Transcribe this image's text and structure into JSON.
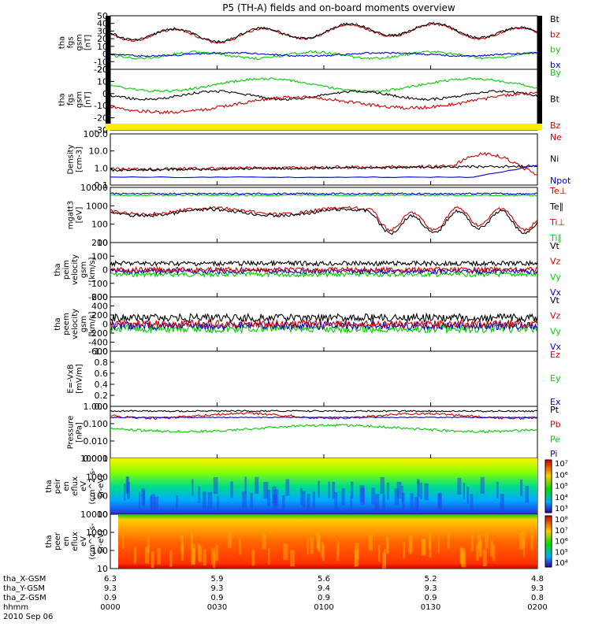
{
  "title": "P5 (TH-A) fields and on-board moments overview",
  "panels": [
    {
      "id": "fgs-gsm",
      "ylabel": [
        "tha",
        "fgs",
        "gsm",
        "[nT]"
      ],
      "ticks": [
        "50",
        "40",
        "30",
        "20",
        "10",
        "0",
        "-10",
        "-20"
      ],
      "ylim": [
        -20,
        50
      ],
      "legend": [
        {
          "text": "Bt",
          "color": "#000000"
        },
        {
          "text": "bz",
          "color": "#d00000"
        },
        {
          "text": "by",
          "color": "#00cc00"
        },
        {
          "text": "bx",
          "color": "#0000cc"
        }
      ]
    },
    {
      "id": "fgs-gsm-2",
      "ylabel": [
        "tha",
        "fgs",
        "gsm",
        "[nT]"
      ],
      "ticks": [
        "20",
        "10",
        "0",
        "-10",
        "-20",
        "-30"
      ],
      "ylim": [
        -35,
        20
      ],
      "legend": [
        {
          "text": "By",
          "color": "#00cc00"
        },
        {
          "text": "Bt",
          "color": "#000000"
        },
        {
          "text": "Bz",
          "color": "#d00000"
        }
      ]
    },
    {
      "id": "density",
      "ylabel": [
        "Density",
        "[cm-3]"
      ],
      "ticks": [
        "100.0",
        "10.0",
        "1.0",
        "0.1"
      ],
      "scale": "log",
      "ylim": [
        0.1,
        100
      ],
      "legend": [
        {
          "text": "Ne",
          "color": "#d00000"
        },
        {
          "text": "Ni",
          "color": "#000000"
        },
        {
          "text": "Npot",
          "color": "#0000cc"
        }
      ]
    },
    {
      "id": "temperature",
      "ylabel": [
        "mgatt3",
        "[eV]"
      ],
      "ticks": [
        "10000",
        "1000",
        "100",
        "10"
      ],
      "scale": "log",
      "ylim": [
        10,
        10000
      ],
      "legend": [
        {
          "text": "Te⊥",
          "color": "#d00000"
        },
        {
          "text": "Te∥",
          "color": "#000000"
        },
        {
          "text": "Ti⊥",
          "color": "#d00000"
        },
        {
          "text": "Ti∥",
          "color": "#00cc00"
        }
      ]
    },
    {
      "id": "peim-velocity",
      "ylabel": [
        "tha",
        "peim",
        "velocity",
        "gsm",
        "[km/s]"
      ],
      "ticks": [
        "200",
        "100",
        "0",
        "-100",
        "-200"
      ],
      "ylim": [
        -200,
        200
      ],
      "legend": [
        {
          "text": "Vt",
          "color": "#000000"
        },
        {
          "text": "Vz",
          "color": "#d00000"
        },
        {
          "text": "Vy",
          "color": "#00cc00"
        },
        {
          "text": "Vx",
          "color": "#0000cc"
        }
      ]
    },
    {
      "id": "peem-velocity",
      "ylabel": [
        "tha",
        "peem",
        "velocity",
        "gsm",
        "[km/s]"
      ],
      "ticks": [
        "600",
        "400",
        "200",
        "0",
        "-200",
        "-400",
        "-600"
      ],
      "ylim": [
        -600,
        600
      ],
      "legend": [
        {
          "text": "Vt",
          "color": "#000000"
        },
        {
          "text": "Vz",
          "color": "#d00000"
        },
        {
          "text": "Vy",
          "color": "#00cc00"
        },
        {
          "text": "Vx",
          "color": "#0000cc"
        }
      ]
    },
    {
      "id": "efield",
      "ylabel": [
        "E=-VxB",
        "[mV/m]"
      ],
      "ticks": [
        "1.0",
        "0.8",
        "0.6",
        "0.4",
        "0.2",
        "0.0"
      ],
      "ylim": [
        0,
        1
      ],
      "legend": [
        {
          "text": "Ez",
          "color": "#d00000"
        },
        {
          "text": "Ey",
          "color": "#00cc00"
        },
        {
          "text": "Ex",
          "color": "#0000cc"
        }
      ]
    },
    {
      "id": "pressure",
      "ylabel": [
        "Pressure",
        "[nPa]"
      ],
      "ticks": [
        "1.000",
        "0.100",
        "0.010",
        "0.001"
      ],
      "scale": "log",
      "ylim": [
        0.001,
        1
      ],
      "legend": [
        {
          "text": "Pt",
          "color": "#000000"
        },
        {
          "text": "Pb",
          "color": "#d00000"
        },
        {
          "text": "Pe",
          "color": "#00cc00"
        },
        {
          "text": "Pi",
          "color": "#0000cc"
        }
      ]
    },
    {
      "id": "peir-spectrogram",
      "ylabel": [
        "tha",
        "peir",
        "en",
        "eflux",
        "eV",
        "(cm^2-s-",
        "sr-eV)"
      ],
      "ticks": [
        "10000",
        "1000",
        "100",
        "10"
      ],
      "scale": "log",
      "colorbar": [
        "10⁷",
        "10⁶",
        "10⁵",
        "10⁴",
        "10³"
      ]
    },
    {
      "id": "peer-spectrogram",
      "ylabel": [
        "tha",
        "peer",
        "en",
        "eflux",
        "eV",
        "(cm^2-s-",
        "sr-eV)"
      ],
      "ticks": [
        "10000",
        "1000",
        "100",
        "10"
      ],
      "scale": "log",
      "colorbar": [
        "10⁸",
        "10⁷",
        "10⁶",
        "10⁵",
        "10⁴"
      ]
    }
  ],
  "xaxis": {
    "rows": [
      {
        "label": "tha_X-GSM",
        "values": [
          "6.3",
          "5.9",
          "5.6",
          "5.2",
          "4.8"
        ]
      },
      {
        "label": "tha_Y-GSM",
        "values": [
          "9.3",
          "9.3",
          "9.4",
          "9.3",
          "9.3"
        ]
      },
      {
        "label": "tha_Z-GSM",
        "values": [
          "0.9",
          "0.9",
          "0.9",
          "0.9",
          "0.8"
        ]
      },
      {
        "label": "hhmm",
        "values": [
          "0000",
          "0030",
          "0100",
          "0130",
          "0200"
        ]
      }
    ],
    "date": "2010 Sep 06"
  },
  "chart_data": {
    "type": "line",
    "title": "P5 (TH-A) fields and on-board moments overview",
    "x_ticks": [
      "0000",
      "0030",
      "0100",
      "0130",
      "0200"
    ],
    "date": "2010 Sep 06",
    "series": [
      {
        "name": "Bt",
        "panel": "fgs-gsm",
        "x": [
          "0000",
          "0015",
          "0030",
          "0045",
          "0100",
          "0115",
          "0130",
          "0145",
          "0200"
        ],
        "values": [
          30,
          25,
          32,
          28,
          33,
          30,
          25,
          28,
          30
        ]
      },
      {
        "name": "bz",
        "panel": "fgs-gsm",
        "x": [
          "0000",
          "0015",
          "0030",
          "0045",
          "0100",
          "0115",
          "0130",
          "0145",
          "0200"
        ],
        "values": [
          29,
          24,
          31,
          27,
          32,
          29,
          24,
          27,
          29
        ]
      },
      {
        "name": "by",
        "panel": "fgs-gsm",
        "x": [
          "0000",
          "0015",
          "0030",
          "0045",
          "0100",
          "0115",
          "0130",
          "0145",
          "0200"
        ],
        "values": [
          -3,
          -5,
          -2,
          -4,
          0,
          -3,
          -6,
          -2,
          -1
        ]
      },
      {
        "name": "bx",
        "panel": "fgs-gsm",
        "x": [
          "0000",
          "0015",
          "0030",
          "0045",
          "0100",
          "0115",
          "0130",
          "0145",
          "0200"
        ],
        "values": [
          -1,
          -2,
          0,
          -1,
          1,
          0,
          -2,
          -1,
          0
        ]
      },
      {
        "name": "By",
        "panel": "fgs-gsm-2",
        "x": [
          "0000",
          "0015",
          "0030",
          "0045",
          "0100",
          "0115",
          "0130",
          "0145",
          "0200"
        ],
        "values": [
          5,
          15,
          10,
          12,
          12,
          15,
          8,
          10,
          12
        ]
      },
      {
        "name": "Bt",
        "panel": "fgs-gsm-2",
        "x": [
          "0000",
          "0015",
          "0030",
          "0045",
          "0100",
          "0115",
          "0130",
          "0145",
          "0200"
        ],
        "values": [
          -5,
          -2,
          -6,
          -4,
          -6,
          -5,
          -4,
          -6,
          -2
        ]
      },
      {
        "name": "Bz",
        "panel": "fgs-gsm-2",
        "x": [
          "0000",
          "0015",
          "0030",
          "0045",
          "0100",
          "0115",
          "0130",
          "0145",
          "0200"
        ],
        "values": [
          -20,
          -25,
          -18,
          -15,
          -15,
          -12,
          -15,
          -12,
          -10
        ]
      },
      {
        "name": "Ne",
        "panel": "density",
        "x": [
          "0000",
          "0030",
          "0100",
          "0130",
          "0145",
          "0200"
        ],
        "values": [
          0.5,
          0.8,
          0.7,
          1.0,
          3.0,
          2.0
        ]
      },
      {
        "name": "Ni",
        "panel": "density",
        "x": [
          "0000",
          "0030",
          "0100",
          "0130",
          "0145",
          "0200"
        ],
        "values": [
          0.5,
          0.7,
          0.7,
          0.9,
          2.0,
          2.0
        ]
      },
      {
        "name": "Npot",
        "panel": "density",
        "x": [
          "0000",
          "0030",
          "0100",
          "0130",
          "0145",
          "0200"
        ],
        "values": [
          0.3,
          0.3,
          0.3,
          0.4,
          0.4,
          0.4
        ]
      },
      {
        "name": "Ti∥",
        "panel": "temperature",
        "x": [
          "0000",
          "0030",
          "0100",
          "0130",
          "0200"
        ],
        "values": [
          4000,
          4000,
          3500,
          3000,
          3500
        ]
      },
      {
        "name": "Te∥",
        "panel": "temperature",
        "x": [
          "0000",
          "0030",
          "0100",
          "0130",
          "0200"
        ],
        "values": [
          500,
          500,
          400,
          60,
          200
        ]
      },
      {
        "name": "Vt",
        "panel": "peim-velocity",
        "x": [
          "0000",
          "0030",
          "0100",
          "0130",
          "0200"
        ],
        "values": [
          60,
          50,
          40,
          70,
          50
        ]
      },
      {
        "name": "Vt",
        "panel": "peem-velocity",
        "x": [
          "0000",
          "0030",
          "0100",
          "0130",
          "0200"
        ],
        "values": [
          100,
          120,
          100,
          150,
          100
        ]
      },
      {
        "name": "Pt",
        "panel": "pressure",
        "x": [
          "0000",
          "0030",
          "0100",
          "0130",
          "0200"
        ],
        "values": [
          0.7,
          0.8,
          0.7,
          0.7,
          0.8
        ]
      },
      {
        "name": "Pb",
        "panel": "pressure",
        "x": [
          "0000",
          "0030",
          "0100",
          "0130",
          "0200"
        ],
        "values": [
          0.4,
          0.5,
          0.5,
          0.4,
          0.5
        ]
      },
      {
        "name": "Pe",
        "panel": "pressure",
        "x": [
          "0000",
          "0030",
          "0100",
          "0130",
          "0200"
        ],
        "values": [
          0.05,
          0.06,
          0.05,
          0.03,
          0.05
        ]
      },
      {
        "name": "Pi",
        "panel": "pressure",
        "x": [
          "0000",
          "0030",
          "0100",
          "0130",
          "0200"
        ],
        "values": [
          0.3,
          0.3,
          0.3,
          0.3,
          0.3
        ]
      }
    ]
  }
}
